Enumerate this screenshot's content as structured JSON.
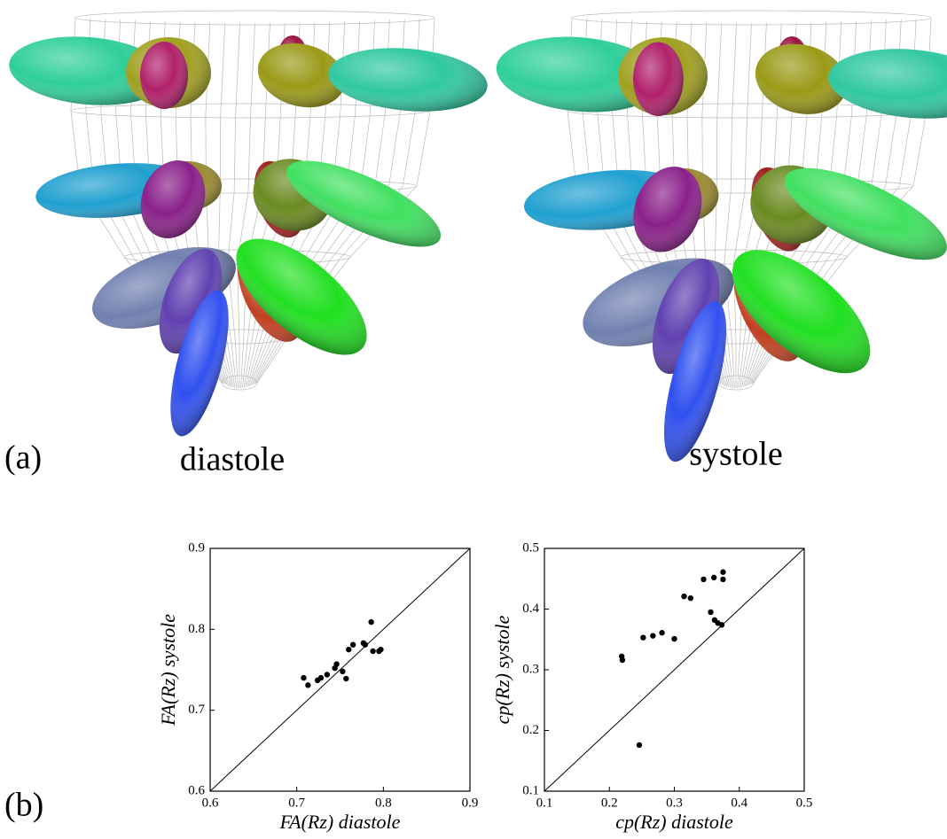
{
  "panel_a": {
    "label": "(a)",
    "views": [
      "diastole",
      "systole"
    ]
  },
  "panel_b": {
    "label": "(b)"
  },
  "chart_data": [
    {
      "type": "scatter",
      "x_label": "FA(Rz) diastole",
      "y_label": "FA(Rz) systole",
      "color": "#000000",
      "x": [
        0.708,
        0.713,
        0.724,
        0.728,
        0.735,
        0.744,
        0.746,
        0.753,
        0.757,
        0.76,
        0.765,
        0.777,
        0.779,
        0.786,
        0.788,
        0.795,
        0.797
      ],
      "values": [
        0.74,
        0.731,
        0.737,
        0.74,
        0.744,
        0.752,
        0.757,
        0.748,
        0.739,
        0.775,
        0.781,
        0.783,
        0.781,
        0.809,
        0.773,
        0.773,
        0.775
      ],
      "xlim": [
        0.6,
        0.9
      ],
      "ylim": [
        0.6,
        0.9
      ],
      "xticks": [
        0.6,
        0.7,
        0.8,
        0.9
      ],
      "yticks": [
        0.6,
        0.7,
        0.8,
        0.9
      ],
      "identity_line": true
    },
    {
      "type": "scatter",
      "x_label": "cp(Rz) diastole",
      "y_label": "cp(Rz) systole",
      "color": "#000000",
      "x": [
        0.219,
        0.22,
        0.252,
        0.267,
        0.281,
        0.3,
        0.315,
        0.325,
        0.345,
        0.361,
        0.375,
        0.375,
        0.356,
        0.362,
        0.367,
        0.373,
        0.246
      ],
      "values": [
        0.322,
        0.316,
        0.353,
        0.356,
        0.361,
        0.351,
        0.421,
        0.418,
        0.449,
        0.452,
        0.461,
        0.449,
        0.395,
        0.382,
        0.377,
        0.374,
        0.176
      ],
      "xlim": [
        0.1,
        0.5
      ],
      "ylim": [
        0.1,
        0.5
      ],
      "xticks": [
        0.1,
        0.2,
        0.3,
        0.4,
        0.5
      ],
      "yticks": [
        0.1,
        0.2,
        0.3,
        0.4,
        0.5
      ],
      "identity_line": true
    }
  ]
}
